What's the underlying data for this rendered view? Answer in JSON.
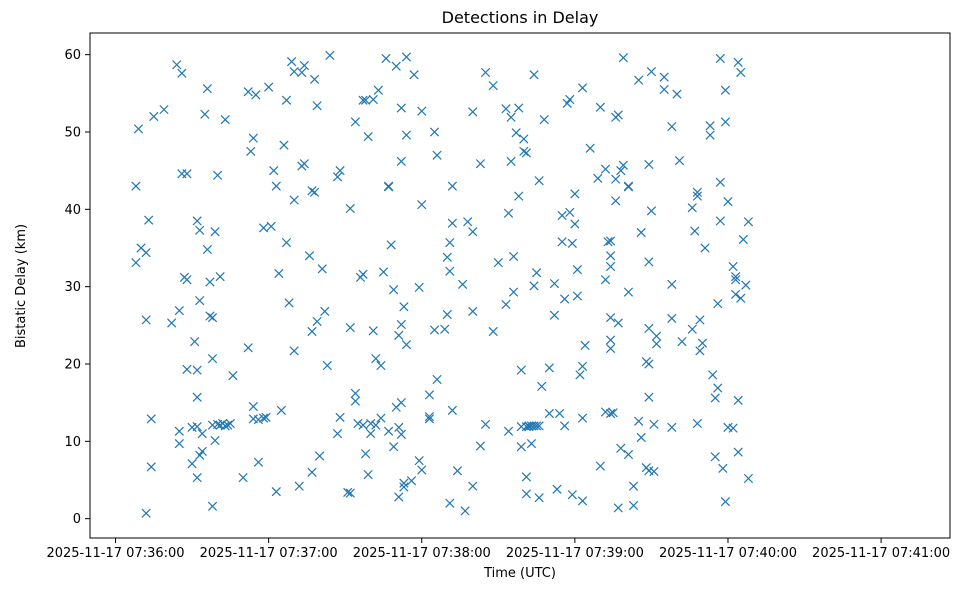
{
  "chart_data": {
    "type": "scatter",
    "title": "Detections in Delay",
    "xlabel": "Time (UTC)",
    "ylabel": "Bistatic Delay (km)",
    "x_is_time": true,
    "xlim": [
      "2025-11-17 07:35:50",
      "2025-11-17 07:41:27"
    ],
    "ylim": [
      -2.5,
      62.8
    ],
    "x_ticks": [
      "2025-11-17 07:36:00",
      "2025-11-17 07:37:00",
      "2025-11-17 07:38:00",
      "2025-11-17 07:39:00",
      "2025-11-17 07:40:00",
      "2025-11-17 07:41:00"
    ],
    "y_ticks": [
      0,
      10,
      20,
      30,
      40,
      50,
      60
    ],
    "grid": false,
    "marker": "x",
    "color": "#1f77b4",
    "points": [
      [
        "07:36:08",
        43.0
      ],
      [
        "07:36:08",
        33.1
      ],
      [
        "07:36:09",
        50.4
      ],
      [
        "07:36:10",
        35.0
      ],
      [
        "07:36:12",
        34.4
      ],
      [
        "07:36:12",
        25.7
      ],
      [
        "07:36:12",
        0.7
      ],
      [
        "07:36:13",
        38.6
      ],
      [
        "07:36:14",
        12.9
      ],
      [
        "07:36:14",
        6.7
      ],
      [
        "07:36:15",
        52.0
      ],
      [
        "07:36:19",
        52.9
      ],
      [
        "07:36:22",
        25.3
      ],
      [
        "07:36:24",
        58.7
      ],
      [
        "07:36:25",
        11.3
      ],
      [
        "07:36:25",
        9.7
      ],
      [
        "07:36:25",
        26.9
      ],
      [
        "07:36:26",
        57.6
      ],
      [
        "07:36:26",
        44.6
      ],
      [
        "07:36:27",
        31.2
      ],
      [
        "07:36:28",
        30.9
      ],
      [
        "07:36:28",
        19.3
      ],
      [
        "07:36:28",
        44.6
      ],
      [
        "07:36:30",
        7.1
      ],
      [
        "07:36:30",
        11.8
      ],
      [
        "07:36:31",
        22.9
      ],
      [
        "07:36:32",
        38.5
      ],
      [
        "07:36:32",
        19.2
      ],
      [
        "07:36:32",
        15.7
      ],
      [
        "07:36:32",
        11.9
      ],
      [
        "07:36:32",
        5.3
      ],
      [
        "07:36:33",
        28.2
      ],
      [
        "07:36:33",
        37.3
      ],
      [
        "07:36:33",
        8.2
      ],
      [
        "07:36:34",
        11.0
      ],
      [
        "07:36:34",
        8.7
      ],
      [
        "07:36:35",
        52.3
      ],
      [
        "07:36:36",
        55.6
      ],
      [
        "07:36:36",
        34.8
      ],
      [
        "07:36:37",
        26.2
      ],
      [
        "07:36:37",
        30.6
      ],
      [
        "07:36:38",
        26.0
      ],
      [
        "07:36:38",
        20.7
      ],
      [
        "07:36:38",
        12.1
      ],
      [
        "07:36:38",
        1.6
      ],
      [
        "07:36:39",
        37.1
      ],
      [
        "07:36:39",
        10.1
      ],
      [
        "07:36:40",
        44.4
      ],
      [
        "07:36:40",
        12.2
      ],
      [
        "07:36:41",
        31.3
      ],
      [
        "07:36:41",
        12.1
      ],
      [
        "07:36:42",
        12.3
      ],
      [
        "07:36:43",
        51.6
      ],
      [
        "07:36:43",
        12.0
      ],
      [
        "07:36:44",
        12.1
      ],
      [
        "07:36:45",
        12.3
      ],
      [
        "07:36:46",
        18.5
      ],
      [
        "07:36:50",
        5.3
      ],
      [
        "07:36:52",
        22.1
      ],
      [
        "07:36:52",
        55.2
      ],
      [
        "07:36:53",
        47.5
      ],
      [
        "07:36:54",
        49.2
      ],
      [
        "07:36:54",
        14.5
      ],
      [
        "07:36:54",
        12.9
      ],
      [
        "07:36:55",
        54.8
      ],
      [
        "07:36:56",
        12.8
      ],
      [
        "07:36:56",
        7.3
      ],
      [
        "07:36:58",
        37.6
      ],
      [
        "07:36:58",
        13.0
      ],
      [
        "07:36:59",
        13.1
      ],
      [
        "07:37:00",
        55.8
      ],
      [
        "07:37:01",
        37.8
      ],
      [
        "07:37:02",
        45.0
      ],
      [
        "07:37:03",
        43.0
      ],
      [
        "07:37:03",
        3.5
      ],
      [
        "07:37:04",
        31.7
      ],
      [
        "07:37:05",
        14.0
      ],
      [
        "07:37:06",
        48.3
      ],
      [
        "07:37:07",
        35.7
      ],
      [
        "07:37:07",
        54.1
      ],
      [
        "07:37:08",
        27.9
      ],
      [
        "07:37:09",
        59.1
      ],
      [
        "07:37:10",
        41.2
      ],
      [
        "07:37:10",
        21.7
      ],
      [
        "07:37:10",
        57.8
      ],
      [
        "07:37:12",
        4.2
      ],
      [
        "07:37:13",
        57.7
      ],
      [
        "07:37:13",
        45.6
      ],
      [
        "07:37:14",
        45.9
      ],
      [
        "07:37:14",
        58.6
      ],
      [
        "07:37:16",
        34.0
      ],
      [
        "07:37:17",
        42.4
      ],
      [
        "07:37:17",
        24.2
      ],
      [
        "07:37:17",
        6.0
      ],
      [
        "07:37:18",
        56.8
      ],
      [
        "07:37:18",
        42.2
      ],
      [
        "07:37:19",
        53.4
      ],
      [
        "07:37:19",
        25.5
      ],
      [
        "07:37:20",
        8.1
      ],
      [
        "07:37:21",
        32.3
      ],
      [
        "07:37:22",
        26.8
      ],
      [
        "07:37:23",
        19.8
      ],
      [
        "07:37:24",
        59.9
      ],
      [
        "07:37:27",
        11.0
      ],
      [
        "07:37:27",
        44.2
      ],
      [
        "07:37:28",
        13.1
      ],
      [
        "07:37:28",
        45.0
      ],
      [
        "07:37:31",
        3.4
      ],
      [
        "07:37:32",
        40.1
      ],
      [
        "07:37:32",
        24.7
      ],
      [
        "07:37:32",
        3.3
      ],
      [
        "07:37:34",
        51.3
      ],
      [
        "07:37:34",
        16.2
      ],
      [
        "07:37:34",
        15.2
      ],
      [
        "07:37:35",
        12.3
      ],
      [
        "07:37:36",
        31.2
      ],
      [
        "07:37:37",
        54.1
      ],
      [
        "07:37:37",
        31.6
      ],
      [
        "07:37:37",
        12.1
      ],
      [
        "07:37:38",
        54.1
      ],
      [
        "07:37:38",
        8.4
      ],
      [
        "07:37:39",
        49.4
      ],
      [
        "07:37:39",
        5.7
      ],
      [
        "07:37:40",
        12.3
      ],
      [
        "07:37:40",
        11.0
      ],
      [
        "07:37:41",
        54.2
      ],
      [
        "07:37:41",
        24.3
      ],
      [
        "07:37:42",
        20.7
      ],
      [
        "07:37:42",
        12.1
      ],
      [
        "07:37:43",
        55.4
      ],
      [
        "07:37:44",
        13.0
      ],
      [
        "07:37:44",
        19.8
      ],
      [
        "07:37:45",
        31.9
      ],
      [
        "07:37:46",
        59.5
      ],
      [
        "07:37:47",
        43.0
      ],
      [
        "07:37:47",
        42.9
      ],
      [
        "07:37:47",
        11.3
      ],
      [
        "07:37:48",
        35.4
      ],
      [
        "07:37:49",
        29.6
      ],
      [
        "07:37:49",
        9.3
      ],
      [
        "07:37:50",
        58.5
      ],
      [
        "07:37:50",
        14.4
      ],
      [
        "07:37:51",
        2.8
      ],
      [
        "07:37:51",
        23.7
      ],
      [
        "07:37:51",
        11.8
      ],
      [
        "07:37:52",
        53.1
      ],
      [
        "07:37:52",
        46.2
      ],
      [
        "07:37:52",
        25.1
      ],
      [
        "07:37:52",
        15.0
      ],
      [
        "07:37:52",
        10.9
      ],
      [
        "07:37:53",
        4.1
      ],
      [
        "07:37:53",
        4.6
      ],
      [
        "07:37:53",
        27.4
      ],
      [
        "07:37:54",
        59.7
      ],
      [
        "07:37:54",
        49.6
      ],
      [
        "07:37:54",
        22.5
      ],
      [
        "07:37:56",
        4.9
      ],
      [
        "07:37:57",
        57.4
      ],
      [
        "07:37:59",
        29.9
      ],
      [
        "07:37:59",
        7.5
      ],
      [
        "07:38:00",
        6.3
      ],
      [
        "07:38:00",
        40.6
      ],
      [
        "07:38:00",
        52.7
      ],
      [
        "07:38:03",
        16.0
      ],
      [
        "07:38:03",
        13.2
      ],
      [
        "07:38:03",
        12.9
      ],
      [
        "07:38:05",
        50.0
      ],
      [
        "07:38:05",
        24.4
      ],
      [
        "07:38:06",
        18.0
      ],
      [
        "07:38:06",
        47.0
      ],
      [
        "07:38:09",
        24.5
      ],
      [
        "07:38:10",
        26.4
      ],
      [
        "07:38:10",
        33.8
      ],
      [
        "07:38:11",
        35.7
      ],
      [
        "07:38:11",
        2.0
      ],
      [
        "07:38:11",
        32.0
      ],
      [
        "07:38:12",
        38.2
      ],
      [
        "07:38:12",
        43.0
      ],
      [
        "07:38:12",
        14.0
      ],
      [
        "07:38:14",
        6.2
      ],
      [
        "07:38:16",
        30.3
      ],
      [
        "07:38:17",
        1.0
      ],
      [
        "07:38:18",
        38.4
      ],
      [
        "07:38:20",
        37.1
      ],
      [
        "07:38:20",
        52.6
      ],
      [
        "07:38:20",
        26.8
      ],
      [
        "07:38:20",
        4.2
      ],
      [
        "07:38:23",
        9.4
      ],
      [
        "07:38:23",
        45.9
      ],
      [
        "07:38:25",
        57.7
      ],
      [
        "07:38:25",
        12.2
      ],
      [
        "07:38:28",
        24.2
      ],
      [
        "07:38:28",
        56.0
      ],
      [
        "07:38:30",
        33.1
      ],
      [
        "07:38:33",
        53.0
      ],
      [
        "07:38:33",
        27.7
      ],
      [
        "07:38:34",
        39.5
      ],
      [
        "07:38:34",
        11.3
      ],
      [
        "07:38:35",
        46.2
      ],
      [
        "07:38:35",
        51.9
      ],
      [
        "07:38:36",
        33.9
      ],
      [
        "07:38:36",
        29.3
      ],
      [
        "07:38:37",
        49.9
      ],
      [
        "07:38:38",
        53.1
      ],
      [
        "07:38:38",
        41.7
      ],
      [
        "07:38:39",
        11.9
      ],
      [
        "07:38:39",
        19.2
      ],
      [
        "07:38:39",
        9.3
      ],
      [
        "07:38:40",
        49.1
      ],
      [
        "07:38:40",
        47.5
      ],
      [
        "07:38:41",
        11.9
      ],
      [
        "07:38:41",
        5.4
      ],
      [
        "07:38:41",
        3.2
      ],
      [
        "07:38:41",
        47.3
      ],
      [
        "07:38:42",
        11.9
      ],
      [
        "07:38:42",
        12.0
      ],
      [
        "07:38:43",
        12.0
      ],
      [
        "07:38:43",
        9.7
      ],
      [
        "07:38:44",
        12.0
      ],
      [
        "07:38:44",
        30.1
      ],
      [
        "07:38:44",
        57.4
      ],
      [
        "07:38:45",
        12.0
      ],
      [
        "07:38:45",
        31.8
      ],
      [
        "07:38:46",
        12.0
      ],
      [
        "07:38:46",
        2.7
      ],
      [
        "07:38:46",
        43.7
      ],
      [
        "07:38:47",
        17.1
      ],
      [
        "07:38:48",
        51.6
      ],
      [
        "07:38:50",
        19.5
      ],
      [
        "07:38:50",
        13.6
      ],
      [
        "07:38:52",
        26.3
      ],
      [
        "07:38:52",
        30.4
      ],
      [
        "07:38:53",
        3.8
      ],
      [
        "07:38:54",
        13.6
      ],
      [
        "07:38:55",
        35.8
      ],
      [
        "07:38:55",
        39.2
      ],
      [
        "07:38:56",
        28.4
      ],
      [
        "07:38:56",
        12.0
      ],
      [
        "07:38:57",
        53.7
      ],
      [
        "07:38:58",
        39.6
      ],
      [
        "07:38:58",
        54.2
      ],
      [
        "07:38:59",
        3.1
      ],
      [
        "07:38:59",
        35.6
      ],
      [
        "07:39:00",
        42.0
      ],
      [
        "07:39:00",
        38.1
      ],
      [
        "07:39:01",
        28.8
      ],
      [
        "07:39:01",
        32.2
      ],
      [
        "07:39:02",
        18.6
      ],
      [
        "07:39:03",
        19.7
      ],
      [
        "07:39:03",
        13.0
      ],
      [
        "07:39:03",
        2.3
      ],
      [
        "07:39:03",
        55.7
      ],
      [
        "07:39:04",
        22.4
      ],
      [
        "07:39:06",
        47.9
      ],
      [
        "07:39:09",
        44.0
      ],
      [
        "07:39:10",
        6.8
      ],
      [
        "07:39:10",
        53.2
      ],
      [
        "07:39:12",
        45.2
      ],
      [
        "07:39:12",
        13.8
      ],
      [
        "07:39:12",
        30.9
      ],
      [
        "07:39:13",
        35.8
      ],
      [
        "07:39:14",
        35.9
      ],
      [
        "07:39:14",
        34.0
      ],
      [
        "07:39:14",
        32.6
      ],
      [
        "07:39:14",
        26.0
      ],
      [
        "07:39:14",
        23.1
      ],
      [
        "07:39:14",
        22.0
      ],
      [
        "07:39:14",
        13.6
      ],
      [
        "07:39:15",
        13.7
      ],
      [
        "07:39:16",
        43.9
      ],
      [
        "07:39:16",
        41.1
      ],
      [
        "07:39:16",
        51.9
      ],
      [
        "07:39:17",
        52.2
      ],
      [
        "07:39:17",
        25.3
      ],
      [
        "07:39:17",
        1.4
      ],
      [
        "07:39:18",
        9.1
      ],
      [
        "07:39:18",
        45.0
      ],
      [
        "07:39:19",
        45.7
      ],
      [
        "07:39:19",
        59.6
      ],
      [
        "07:39:21",
        42.9
      ],
      [
        "07:39:21",
        43.0
      ],
      [
        "07:39:21",
        29.3
      ],
      [
        "07:39:21",
        8.3
      ],
      [
        "07:39:23",
        1.7
      ],
      [
        "07:39:23",
        4.2
      ],
      [
        "07:39:25",
        12.6
      ],
      [
        "07:39:25",
        56.7
      ],
      [
        "07:39:26",
        37.0
      ],
      [
        "07:39:26",
        10.5
      ],
      [
        "07:39:28",
        20.3
      ],
      [
        "07:39:28",
        6.6
      ],
      [
        "07:39:29",
        33.2
      ],
      [
        "07:39:29",
        24.6
      ],
      [
        "07:39:29",
        45.8
      ],
      [
        "07:39:29",
        20.0
      ],
      [
        "07:39:29",
        15.7
      ],
      [
        "07:39:29",
        6.2
      ],
      [
        "07:39:30",
        57.8
      ],
      [
        "07:39:30",
        39.8
      ],
      [
        "07:39:31",
        12.2
      ],
      [
        "07:39:31",
        6.1
      ],
      [
        "07:39:32",
        22.6
      ],
      [
        "07:39:32",
        23.6
      ],
      [
        "07:39:35",
        57.1
      ],
      [
        "07:39:35",
        55.5
      ],
      [
        "07:39:38",
        11.8
      ],
      [
        "07:39:38",
        25.9
      ],
      [
        "07:39:38",
        30.3
      ],
      [
        "07:39:38",
        50.7
      ],
      [
        "07:39:40",
        54.9
      ],
      [
        "07:39:41",
        46.3
      ],
      [
        "07:39:42",
        22.9
      ],
      [
        "07:39:46",
        40.2
      ],
      [
        "07:39:46",
        24.5
      ],
      [
        "07:39:47",
        37.2
      ],
      [
        "07:39:48",
        42.2
      ],
      [
        "07:39:48",
        41.7
      ],
      [
        "07:39:48",
        12.3
      ],
      [
        "07:39:49",
        25.7
      ],
      [
        "07:39:49",
        21.7
      ],
      [
        "07:39:50",
        22.7
      ],
      [
        "07:39:51",
        35.0
      ],
      [
        "07:39:53",
        50.8
      ],
      [
        "07:39:53",
        49.6
      ],
      [
        "07:39:54",
        18.6
      ],
      [
        "07:39:55",
        8.0
      ],
      [
        "07:39:55",
        15.6
      ],
      [
        "07:39:56",
        16.9
      ],
      [
        "07:39:56",
        27.8
      ],
      [
        "07:39:57",
        38.5
      ],
      [
        "07:39:57",
        59.5
      ],
      [
        "07:39:57",
        43.5
      ],
      [
        "07:39:58",
        6.5
      ],
      [
        "07:39:59",
        2.2
      ],
      [
        "07:39:59",
        51.3
      ],
      [
        "07:39:59",
        55.4
      ],
      [
        "07:40:00",
        41.0
      ],
      [
        "07:40:00",
        11.8
      ],
      [
        "07:40:02",
        32.6
      ],
      [
        "07:40:02",
        11.7
      ],
      [
        "07:40:03",
        31.3
      ],
      [
        "07:40:03",
        30.9
      ],
      [
        "07:40:03",
        29.0
      ],
      [
        "07:40:04",
        15.3
      ],
      [
        "07:40:04",
        59.0
      ],
      [
        "07:40:04",
        8.6
      ],
      [
        "07:40:05",
        57.7
      ],
      [
        "07:40:05",
        28.5
      ],
      [
        "07:40:06",
        36.1
      ],
      [
        "07:40:07",
        30.2
      ],
      [
        "07:40:08",
        38.4
      ],
      [
        "07:40:08",
        5.2
      ]
    ]
  }
}
